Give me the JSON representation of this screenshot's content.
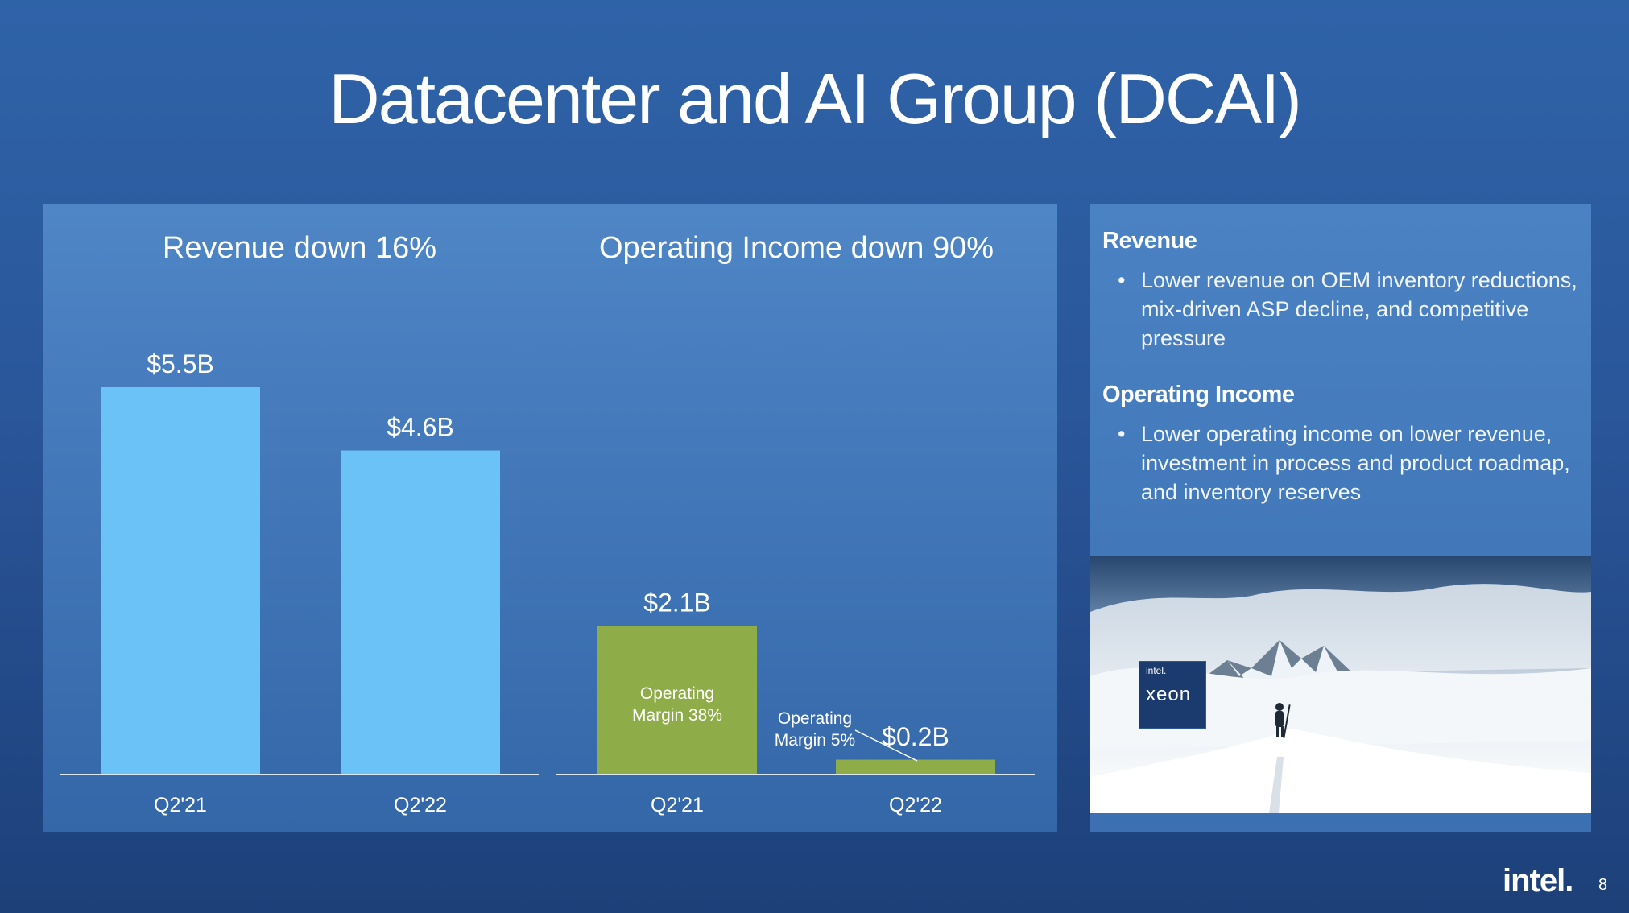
{
  "slide": {
    "title": "Datacenter and AI Group (DCAI)",
    "logo": "intel.",
    "page_number": "8"
  },
  "chart_data": [
    {
      "type": "bar",
      "title": "Revenue down 16%",
      "categories": [
        "Q2'21",
        "Q2'22"
      ],
      "values": [
        5.5,
        4.6
      ],
      "value_labels": [
        "$5.5B",
        "$4.6B"
      ],
      "unit": "$B",
      "ylim": [
        0,
        5.5
      ],
      "color": "#6bc2f7"
    },
    {
      "type": "bar",
      "title": "Operating Income down 90%",
      "categories": [
        "Q2'21",
        "Q2'22"
      ],
      "values": [
        2.1,
        0.2
      ],
      "value_labels": [
        "$2.1B",
        "$0.2B"
      ],
      "annotations": [
        [
          "Operating",
          "Margin 38%"
        ],
        [
          "Operating",
          "Margin 5%"
        ]
      ],
      "unit": "$B",
      "ylim": [
        0,
        5.5
      ],
      "color": "#8eac48"
    }
  ],
  "side_panel": {
    "revenue_heading": "Revenue",
    "revenue_bullet": "Lower revenue on OEM inventory reductions, mix-driven ASP decline, and competitive pressure",
    "income_heading": "Operating Income",
    "income_bullet": "Lower operating income on lower revenue, investment in process and product roadmap, and inventory reserves",
    "bullet_glyph": "•",
    "badge_small": "intel.",
    "badge_big": "xeon"
  }
}
